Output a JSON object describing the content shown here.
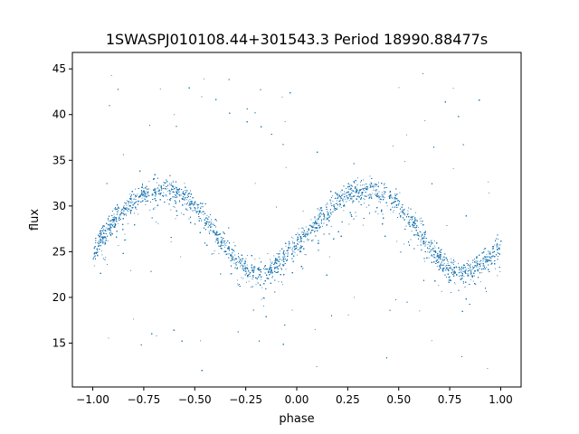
{
  "chart_data": {
    "type": "scatter",
    "title": "1SWASPJ010108.44+301543.3 Period 18990.88477s",
    "xlabel": "phase",
    "ylabel": "flux",
    "xlim": [
      -1.1,
      1.1
    ],
    "ylim": [
      10.2,
      46.8
    ],
    "xticks": [
      -1.0,
      -0.75,
      -0.5,
      -0.25,
      0.0,
      0.25,
      0.5,
      0.75,
      1.0
    ],
    "xtick_labels": [
      "−1.00",
      "−0.75",
      "−0.50",
      "−0.25",
      "0.00",
      "0.25",
      "0.50",
      "0.75",
      "1.00"
    ],
    "yticks": [
      15,
      20,
      25,
      30,
      35,
      40,
      45
    ],
    "ytick_labels": [
      "15",
      "20",
      "25",
      "30",
      "35",
      "40",
      "45"
    ],
    "grid": false,
    "marker_color": "#1f77b4",
    "series": [
      {
        "x": [
          -1.0,
          -0.95,
          -0.9,
          -0.85,
          -0.8,
          -0.75,
          -0.7,
          -0.65,
          -0.6,
          -0.55,
          -0.5,
          -0.45,
          -0.4,
          -0.35,
          -0.3,
          -0.25,
          -0.2,
          -0.15,
          -0.1,
          -0.05,
          0.0,
          0.05,
          0.1,
          0.15,
          0.2,
          0.25,
          0.3,
          0.35,
          0.4,
          0.45,
          0.5,
          0.55,
          0.6,
          0.65,
          0.7,
          0.75,
          0.8,
          0.85,
          0.9,
          0.95,
          1.0
        ],
        "y": [
          25.0,
          26.8,
          28.3,
          29.6,
          30.6,
          31.3,
          31.7,
          31.9,
          31.6,
          31.0,
          30.0,
          28.7,
          27.2,
          25.6,
          24.2,
          23.2,
          22.8,
          23.0,
          23.6,
          24.6,
          25.8,
          27.1,
          28.4,
          29.6,
          30.6,
          31.3,
          31.7,
          31.9,
          31.6,
          31.0,
          30.0,
          28.7,
          27.2,
          25.6,
          24.2,
          23.2,
          22.8,
          23.0,
          23.6,
          24.6,
          25.8
        ]
      }
    ]
  }
}
